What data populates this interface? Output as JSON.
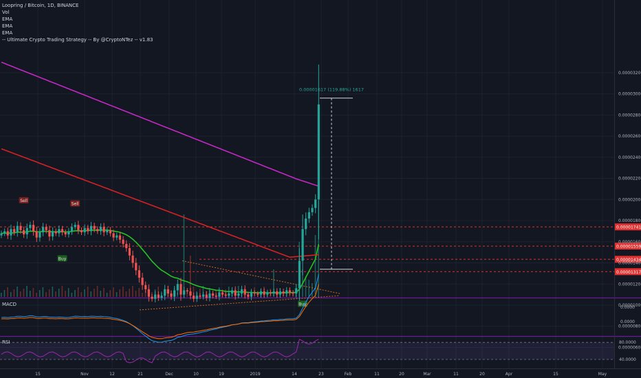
{
  "legend": {
    "symbol": "Loopring / Bitcoin, 1D, BINANCE",
    "indicators": [
      "Vol",
      "EMA",
      "EMA",
      "EMA",
      "-- Ultimate Crypto Trading Strategy -- By @CryptoNTez -- v1.83"
    ]
  },
  "panes": {
    "macd_label": "MACD",
    "rsi_label": "RSI"
  },
  "measure_label": "0.00001617 (119.88%) 1617",
  "colors": {
    "background": "#131722",
    "up": "#26a69a",
    "down": "#ef5350",
    "ema_fast": "#22c322",
    "ema_mid": "#d42222",
    "ema_slow": "#c328c3",
    "hline": "#e03030",
    "trend": "#d2691e",
    "pane_border": "#6a1b9a"
  },
  "price_axis": {
    "ticks": [
      "0.00003200",
      "0.00003000",
      "0.00002800",
      "0.00002600",
      "0.00002400",
      "0.00002200",
      "0.00002000",
      "0.00001800",
      "0.00001600",
      "0.00001400",
      "0.00001200",
      "0.00001000",
      "0.00000800",
      "0.00000600"
    ],
    "tick_values": [
      3200,
      3000,
      2800,
      2600,
      2400,
      2200,
      2000,
      1800,
      1600,
      1400,
      1200,
      1000,
      800,
      600
    ],
    "level_labels": [
      {
        "text": "0.00001741",
        "value": 1741
      },
      {
        "text": "0.00001559",
        "value": 1559
      },
      {
        "text": "0.00001434",
        "value": 1434
      },
      {
        "text": "0.00001317",
        "value": 1317
      }
    ]
  },
  "macd_axis": {
    "ticks": [
      "0.0000",
      "0.0000"
    ]
  },
  "rsi_axis": {
    "ticks": [
      "80.0000",
      "40.0000"
    ],
    "tick_values": [
      80,
      40
    ]
  },
  "time_axis": [
    "15",
    "Nov",
    "12",
    "21",
    "Dec",
    "10",
    "19",
    "2019",
    "14",
    "23",
    "Feb",
    "11",
    "20",
    "Mar",
    "11",
    "20",
    "Apr",
    "15",
    "May"
  ],
  "signals": [
    {
      "text": "Sell",
      "type": "sell"
    },
    {
      "text": "Sell",
      "type": "sell"
    },
    {
      "text": "Buy",
      "type": "buy"
    },
    {
      "text": "Buy",
      "type": "buy"
    }
  ],
  "chart_data": {
    "type": "candlestick",
    "title": "Loopring / Bitcoin, 1D, BINANCE",
    "y_unit": "satoshi (x 1e-8 BTC)",
    "ylim": [
      600,
      3250
    ],
    "closes": [
      1680,
      1700,
      1660,
      1720,
      1690,
      1750,
      1710,
      1670,
      1730,
      1760,
      1700,
      1640,
      1690,
      1740,
      1710,
      1650,
      1700,
      1680,
      1720,
      1690,
      1670,
      1700,
      1740,
      1760,
      1710,
      1690,
      1730,
      1700,
      1750,
      1720,
      1700,
      1740,
      1690,
      1710,
      1680,
      1640,
      1660,
      1620,
      1580,
      1540,
      1470,
      1400,
      1330,
      1260,
      1190,
      1150,
      1080,
      1060,
      1100,
      1070,
      1090,
      1150,
      1110,
      1080,
      1140,
      1200,
      1100,
      1140,
      1130,
      1090,
      1060,
      1090,
      1080,
      1100,
      1070,
      1110,
      1090,
      1080,
      1120,
      1100,
      1090,
      1110,
      1140,
      1090,
      1110,
      1150,
      1100,
      1080,
      1120,
      1110,
      1100,
      1130,
      1100,
      1120,
      1110,
      1130,
      1100,
      1130,
      1110,
      1140,
      1120,
      1110,
      1160,
      1420,
      1720,
      1820,
      1880,
      1920,
      2000,
      2900
    ],
    "ema_fast_last": 1310,
    "ema_mid_last": 1450,
    "ema_slow_last": 2070
  }
}
